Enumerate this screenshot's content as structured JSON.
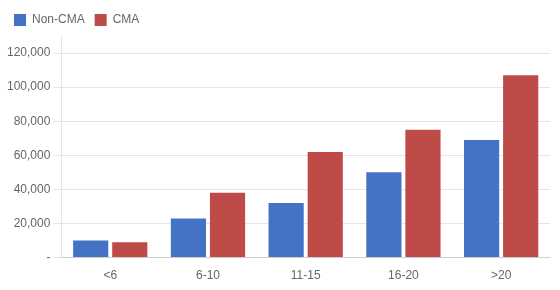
{
  "chart_data": {
    "type": "bar",
    "categories": [
      "<6",
      "6-10",
      "11-15",
      "16-20",
      ">20"
    ],
    "series": [
      {
        "name": "Non-CMA",
        "color": "#4472C4",
        "values": [
          10000,
          23000,
          32000,
          50000,
          69000
        ]
      },
      {
        "name": "CMA",
        "color": "#BE4B48",
        "values": [
          9000,
          38000,
          62000,
          75000,
          107000
        ]
      }
    ],
    "ylim": [
      0,
      130000
    ],
    "yticks": [
      {
        "value": 0,
        "label": "-"
      },
      {
        "value": 20000,
        "label": "20,000"
      },
      {
        "value": 40000,
        "label": "40,000"
      },
      {
        "value": 60000,
        "label": "60,000"
      },
      {
        "value": 80000,
        "label": "80,000"
      },
      {
        "value": 100000,
        "label": "100,000"
      },
      {
        "value": 120000,
        "label": "120,000"
      }
    ],
    "grid": true,
    "legend": "upper left"
  }
}
